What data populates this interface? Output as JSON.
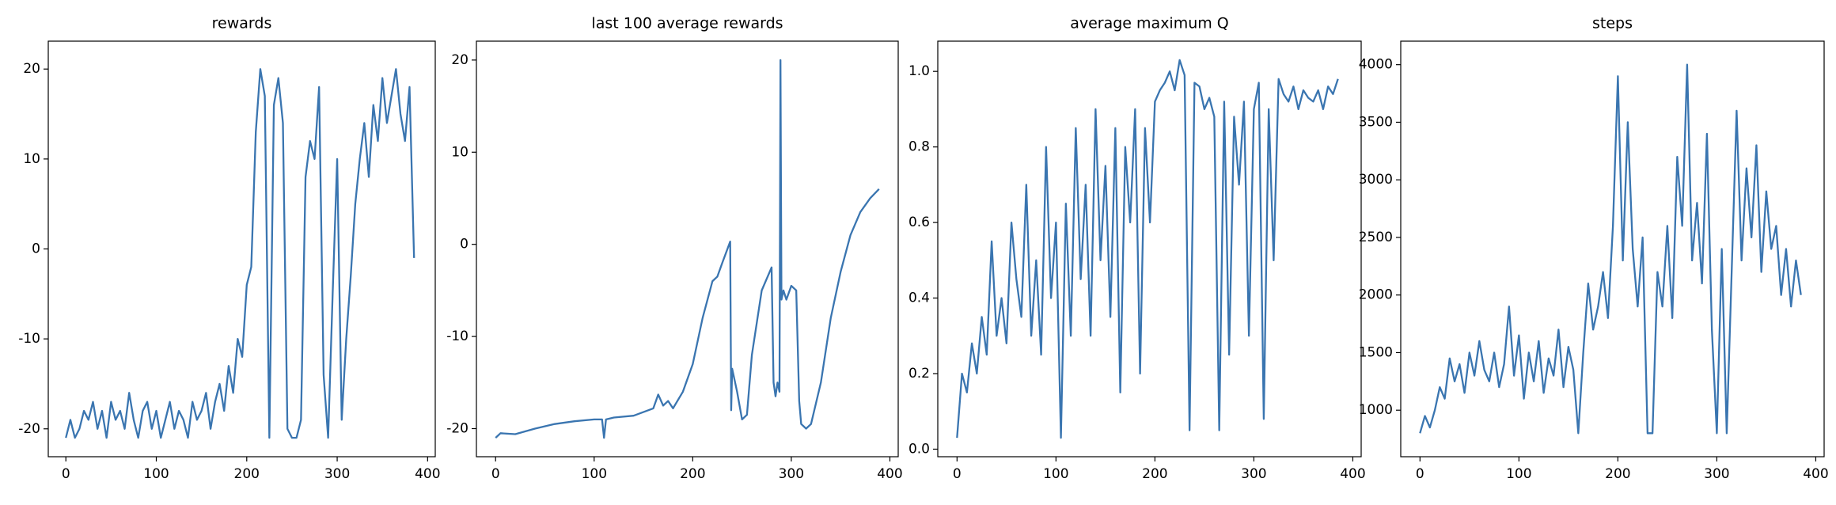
{
  "chart_data": [
    {
      "type": "line",
      "title": "rewards",
      "color": "#3a75b0",
      "x": [
        0,
        5,
        10,
        15,
        20,
        25,
        30,
        35,
        40,
        45,
        50,
        55,
        60,
        65,
        70,
        75,
        80,
        85,
        90,
        95,
        100,
        105,
        110,
        115,
        120,
        125,
        130,
        135,
        140,
        145,
        150,
        155,
        160,
        165,
        170,
        175,
        180,
        185,
        190,
        195,
        200,
        205,
        210,
        215,
        220,
        225,
        230,
        235,
        240,
        245,
        250,
        255,
        260,
        265,
        270,
        275,
        280,
        285,
        290,
        295,
        300,
        305,
        310,
        315,
        320,
        325,
        330,
        335,
        340,
        345,
        350,
        355,
        360,
        365,
        370,
        375,
        380,
        385
      ],
      "values": [
        -21,
        -19,
        -21,
        -20,
        -18,
        -19,
        -17,
        -20,
        -18,
        -21,
        -17,
        -19,
        -18,
        -20,
        -16,
        -19,
        -21,
        -18,
        -17,
        -20,
        -18,
        -21,
        -19,
        -17,
        -20,
        -18,
        -19,
        -21,
        -17,
        -19,
        -18,
        -16,
        -20,
        -17,
        -15,
        -18,
        -13,
        -16,
        -10,
        -12,
        -4,
        -2,
        13,
        20,
        17,
        -21,
        16,
        19,
        14,
        -20,
        -21,
        -21,
        -19,
        8,
        12,
        10,
        18,
        -14,
        -21,
        -5,
        10,
        -19,
        -10,
        -3,
        5,
        10,
        14,
        8,
        16,
        12,
        19,
        14,
        17,
        20,
        15,
        12,
        18,
        -1
      ],
      "xlim": [
        -19.45,
        408.45
      ],
      "xticks": [
        0,
        100,
        200,
        300,
        400
      ],
      "ylim": [
        -23.1,
        23.1
      ],
      "yticks": [
        -20,
        -10,
        0,
        10,
        20
      ]
    },
    {
      "type": "line",
      "title": "last 100 average rewards",
      "color": "#3a75b0",
      "x": [
        0,
        5,
        20,
        40,
        60,
        80,
        100,
        108,
        110,
        112,
        120,
        140,
        160,
        165,
        170,
        175,
        180,
        190,
        200,
        210,
        220,
        225,
        230,
        238,
        239,
        240,
        245,
        250,
        255,
        260,
        270,
        280,
        282,
        284,
        286,
        288,
        289,
        290,
        292,
        295,
        300,
        305,
        308,
        310,
        315,
        320,
        330,
        340,
        350,
        360,
        370,
        380,
        389
      ],
      "values": [
        -21,
        -20.5,
        -20.6,
        -20,
        -19.5,
        -19.2,
        -19,
        -19,
        -21,
        -19,
        -18.8,
        -18.6,
        -17.8,
        -16.3,
        -17.5,
        -17,
        -17.8,
        -16,
        -13,
        -8,
        -4,
        -3.5,
        -2,
        0.3,
        -18,
        -13.5,
        -16,
        -19,
        -18.5,
        -12,
        -5,
        -2.5,
        -15,
        -16.5,
        -15,
        -16,
        20,
        -6,
        -5,
        -6,
        -4.5,
        -5,
        -17,
        -19.5,
        -20,
        -19.5,
        -15,
        -8,
        -3,
        1,
        3.5,
        5,
        6
      ],
      "xlim": [
        -19.45,
        408.45
      ],
      "xticks": [
        0,
        100,
        200,
        300,
        400
      ],
      "ylim": [
        -23.05,
        22.05
      ],
      "yticks": [
        -20,
        -10,
        0,
        10,
        20
      ]
    },
    {
      "type": "line",
      "title": "average maximum Q",
      "color": "#3a75b0",
      "x": [
        0,
        5,
        10,
        15,
        20,
        25,
        30,
        35,
        40,
        45,
        50,
        55,
        60,
        65,
        70,
        75,
        80,
        85,
        90,
        95,
        100,
        105,
        110,
        115,
        120,
        125,
        130,
        135,
        140,
        145,
        150,
        155,
        160,
        165,
        170,
        175,
        180,
        185,
        190,
        195,
        200,
        205,
        210,
        215,
        220,
        225,
        230,
        235,
        240,
        245,
        250,
        255,
        260,
        265,
        270,
        275,
        280,
        285,
        290,
        295,
        300,
        305,
        310,
        315,
        320,
        325,
        330,
        335,
        340,
        345,
        350,
        355,
        360,
        365,
        370,
        375,
        380,
        385
      ],
      "values": [
        0.03,
        0.2,
        0.15,
        0.28,
        0.2,
        0.35,
        0.25,
        0.55,
        0.3,
        0.4,
        0.28,
        0.6,
        0.45,
        0.35,
        0.7,
        0.3,
        0.5,
        0.25,
        0.8,
        0.4,
        0.6,
        0.03,
        0.65,
        0.3,
        0.85,
        0.45,
        0.7,
        0.3,
        0.9,
        0.5,
        0.75,
        0.35,
        0.85,
        0.15,
        0.8,
        0.6,
        0.9,
        0.2,
        0.85,
        0.6,
        0.92,
        0.95,
        0.97,
        1.0,
        0.95,
        1.03,
        0.99,
        0.05,
        0.97,
        0.96,
        0.9,
        0.93,
        0.88,
        0.05,
        0.92,
        0.25,
        0.88,
        0.7,
        0.92,
        0.3,
        0.9,
        0.97,
        0.08,
        0.9,
        0.5,
        0.98,
        0.94,
        0.92,
        0.96,
        0.9,
        0.95,
        0.93,
        0.92,
        0.95,
        0.9,
        0.96,
        0.94,
        0.98
      ],
      "xlim": [
        -19.45,
        408.45
      ],
      "xticks": [
        0,
        100,
        200,
        300,
        400
      ],
      "ylim": [
        -0.02,
        1.08
      ],
      "yticks": [
        {
          "value": 0,
          "label": "0.0"
        },
        0.2,
        0.4,
        0.6,
        0.8,
        {
          "value": 1,
          "label": "1.0"
        }
      ]
    },
    {
      "type": "line",
      "title": "steps",
      "color": "#3a75b0",
      "x": [
        0,
        5,
        10,
        15,
        20,
        25,
        30,
        35,
        40,
        45,
        50,
        55,
        60,
        65,
        70,
        75,
        80,
        85,
        90,
        95,
        100,
        105,
        110,
        115,
        120,
        125,
        130,
        135,
        140,
        145,
        150,
        155,
        160,
        165,
        170,
        175,
        180,
        185,
        190,
        195,
        200,
        205,
        210,
        215,
        220,
        225,
        230,
        235,
        240,
        245,
        250,
        255,
        260,
        265,
        270,
        275,
        280,
        285,
        290,
        295,
        300,
        305,
        310,
        315,
        320,
        325,
        330,
        335,
        340,
        345,
        350,
        355,
        360,
        365,
        370,
        375,
        380,
        385
      ],
      "values": [
        800,
        950,
        850,
        1000,
        1200,
        1100,
        1450,
        1250,
        1400,
        1150,
        1500,
        1300,
        1600,
        1350,
        1250,
        1500,
        1200,
        1400,
        1900,
        1300,
        1650,
        1100,
        1500,
        1250,
        1600,
        1150,
        1450,
        1300,
        1700,
        1200,
        1550,
        1350,
        800,
        1500,
        2100,
        1700,
        1900,
        2200,
        1800,
        2600,
        3900,
        2300,
        3500,
        2400,
        1900,
        2500,
        800,
        800,
        2200,
        1900,
        2600,
        1800,
        3200,
        2600,
        4000,
        2300,
        2800,
        2100,
        3400,
        1700,
        800,
        2400,
        800,
        2200,
        3600,
        2300,
        3100,
        2500,
        3300,
        2200,
        2900,
        2400,
        2600,
        2000,
        2400,
        1900,
        2300,
        2000
      ],
      "xlim": [
        -19.45,
        408.45
      ],
      "xticks": [
        0,
        100,
        200,
        300,
        400
      ],
      "ylim": [
        596,
        4204
      ],
      "yticks": [
        1000,
        1500,
        2000,
        2500,
        3000,
        3500,
        4000
      ]
    }
  ]
}
